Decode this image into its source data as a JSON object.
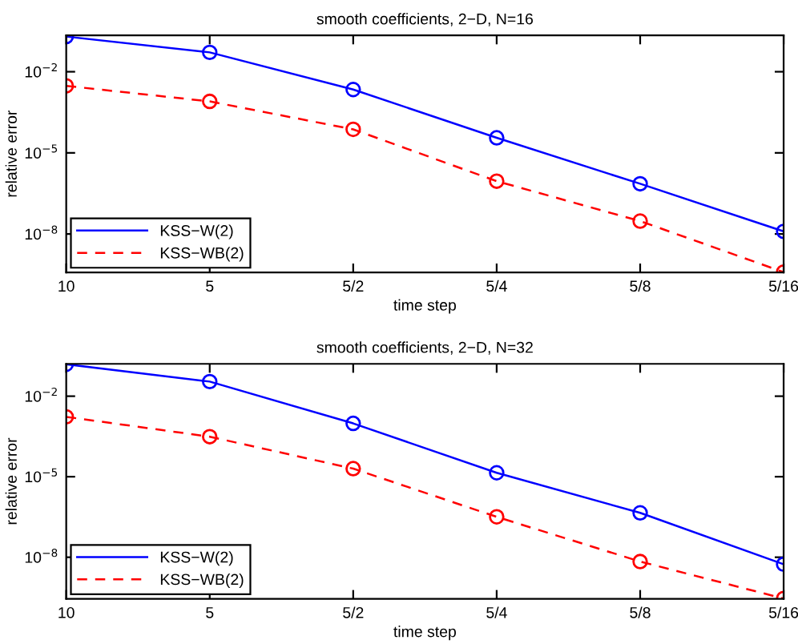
{
  "chart_data": [
    {
      "type": "line",
      "title": "smooth coefficients, 2−D, N=16",
      "xlabel": "time step",
      "ylabel": "relative error",
      "categories": [
        "10",
        "5",
        "5/2",
        "5/4",
        "5/8",
        "5/16"
      ],
      "series": [
        {
          "name": "KSS−W(2)",
          "color": "#0000ff",
          "line_style": "solid",
          "values": [
            0.2,
            0.052,
            0.0022,
            3.6e-05,
            7.2e-07,
            1.25e-08
          ]
        },
        {
          "name": "KSS−WB(2)",
          "color": "#ff0000",
          "line_style": "dashed",
          "values": [
            0.003,
            0.0008,
            7.4e-05,
            9e-07,
            3e-08,
            3.9e-10
          ]
        }
      ],
      "marker": "circle",
      "log": "y",
      "ylim": [
        3.8e-10,
        0.22
      ],
      "yticks": [
        {
          "value": 1e-08,
          "label": "10$^{−8}$"
        },
        {
          "value": 1e-05,
          "label": "10$^{−5}$"
        },
        {
          "value": 0.01,
          "label": "10$^{−2}$"
        }
      ],
      "grid": false,
      "legend": "bottom left"
    },
    {
      "type": "line",
      "title": "smooth coefficients, 2−D, N=32",
      "xlabel": "time step",
      "ylabel": "relative error",
      "categories": [
        "10",
        "5",
        "5/2",
        "5/4",
        "5/8",
        "5/16"
      ],
      "series": [
        {
          "name": "KSS−W(2)",
          "color": "#0000ff",
          "line_style": "solid",
          "values": [
            0.155,
            0.035,
            0.00097,
            1.4e-05,
            4.5e-07,
            5.5e-09
          ]
        },
        {
          "name": "KSS−WB(2)",
          "color": "#ff0000",
          "line_style": "dashed",
          "values": [
            0.0017,
            0.00031,
            2e-05,
            3.2e-07,
            6.9e-09,
            2.9e-10
          ]
        }
      ],
      "marker": "circle",
      "log": "y",
      "ylim": [
        2.8e-10,
        0.16
      ],
      "yticks": [
        {
          "value": 1e-08,
          "label": "10$^{−8}$"
        },
        {
          "value": 1e-05,
          "label": "10$^{−5}$"
        },
        {
          "value": 0.01,
          "label": "10$^{−2}$"
        }
      ],
      "grid": false,
      "legend": "bottom left"
    }
  ]
}
